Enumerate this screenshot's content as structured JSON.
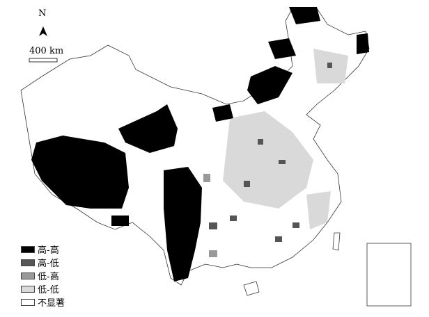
{
  "north_label": "N",
  "scale_label": "400 km",
  "legend": [
    {
      "label": "高-高",
      "color": "#000000"
    },
    {
      "label": "高-低",
      "color": "#555555"
    },
    {
      "label": "低-高",
      "color": "#999999"
    },
    {
      "label": "低-低",
      "color": "#d9d9d9"
    },
    {
      "label": "不显著",
      "color": "#ffffff"
    }
  ]
}
